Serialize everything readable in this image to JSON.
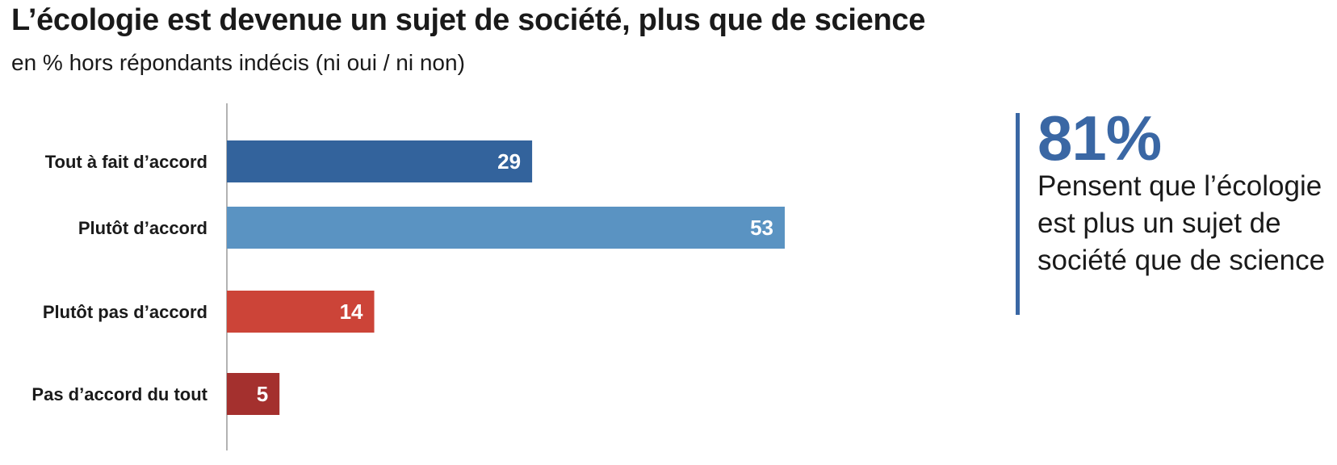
{
  "header": {
    "title": "L’écologie est devenue un sujet de société, plus que de science",
    "subtitle": "en % hors répondants indécis (ni oui / ni non)"
  },
  "chart_data": {
    "type": "bar",
    "orientation": "horizontal",
    "categories": [
      "Tout à fait d’accord",
      "Plutôt d’accord",
      "Plutôt pas d’accord",
      "Pas d’accord du tout"
    ],
    "values": [
      29,
      53,
      14,
      5
    ],
    "colors": [
      "#33639c",
      "#5a93c2",
      "#cc4438",
      "#a4302e"
    ],
    "title": "L’écologie est devenue un sujet de société, plus que de science",
    "subtitle": "en % hors répondants indécis (ni oui / ni non)",
    "xlabel": "",
    "ylabel": "",
    "xlim": [
      0,
      53
    ],
    "grid": false
  },
  "callout": {
    "value": "81%",
    "text": "Pensent que l’écologie est plus un sujet de société que de science",
    "color": "#3a67a4"
  }
}
